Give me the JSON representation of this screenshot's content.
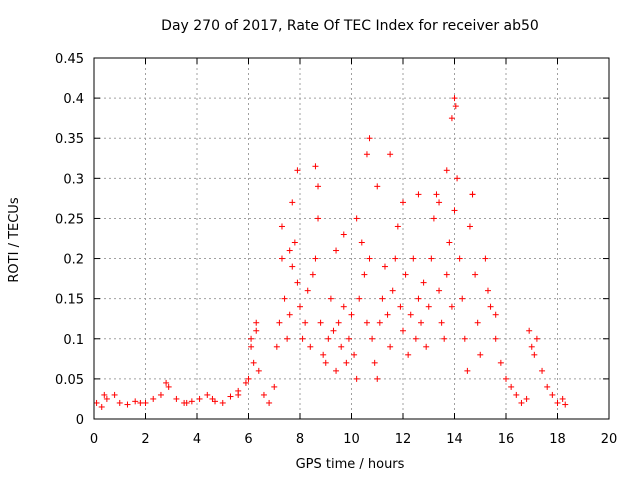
{
  "chart_data": {
    "type": "scatter",
    "title": "Day 270 of 2017, Rate Of TEC Index for receiver ab50",
    "xlabel": "GPS time / hours",
    "ylabel": "ROTI / TECUs",
    "xlim": [
      0,
      20
    ],
    "ylim": [
      0,
      0.45
    ],
    "x_ticks": [
      "0",
      "2",
      "4",
      "6",
      "8",
      "10",
      "12",
      "14",
      "16",
      "18",
      "20"
    ],
    "y_ticks": [
      "0",
      "0.05",
      "0.1",
      "0.15",
      "0.2",
      "0.25",
      "0.3",
      "0.35",
      "0.4",
      "0.45"
    ],
    "grid": true,
    "marker": "+",
    "color": "#ff0000",
    "series": [
      {
        "name": "ROTI",
        "x": [
          0.1,
          0.3,
          0.5,
          0.8,
          1.0,
          1.3,
          1.6,
          2.0,
          2.3,
          2.6,
          2.9,
          3.2,
          3.5,
          3.8,
          4.1,
          4.4,
          4.7,
          5.0,
          5.3,
          5.6,
          5.9,
          6.0,
          6.1,
          6.2,
          6.3,
          6.4,
          6.6,
          6.8,
          7.0,
          7.1,
          7.2,
          7.3,
          7.4,
          7.5,
          7.6,
          7.7,
          7.8,
          7.9,
          8.0,
          8.1,
          8.2,
          8.3,
          8.4,
          8.5,
          8.6,
          8.7,
          8.8,
          8.9,
          9.0,
          9.1,
          9.2,
          9.3,
          9.4,
          9.5,
          9.6,
          9.7,
          9.8,
          9.9,
          10.0,
          10.1,
          10.2,
          10.3,
          10.4,
          10.5,
          10.6,
          10.7,
          10.8,
          10.9,
          11.0,
          11.1,
          11.2,
          11.3,
          11.4,
          11.5,
          11.6,
          11.7,
          11.8,
          11.9,
          12.0,
          12.1,
          12.2,
          12.3,
          12.4,
          12.5,
          12.6,
          12.7,
          12.8,
          12.9,
          13.0,
          13.1,
          13.2,
          13.3,
          13.4,
          13.5,
          13.6,
          13.7,
          13.8,
          13.9,
          14.0,
          14.1,
          14.2,
          14.3,
          14.4,
          14.5,
          14.6,
          14.7,
          14.8,
          14.9,
          15.0,
          15.2,
          15.4,
          15.6,
          15.8,
          16.0,
          16.2,
          16.4,
          16.6,
          16.8,
          17.0,
          17.2,
          17.4,
          17.6,
          17.8,
          18.0,
          18.2,
          18.3,
          8.6,
          7.9,
          10.6,
          10.7,
          11.5,
          13.9,
          14.0,
          14.05,
          13.7,
          12.6,
          10.2,
          9.7,
          8.7,
          7.7,
          13.4,
          14.7,
          12.0,
          11.0,
          9.4,
          15.3,
          15.6,
          6.1,
          6.3,
          7.3,
          7.6,
          16.9,
          17.1,
          0.4,
          1.8,
          2.8,
          3.6,
          4.6,
          5.6
        ],
        "y": [
          0.02,
          0.015,
          0.025,
          0.03,
          0.02,
          0.018,
          0.022,
          0.02,
          0.025,
          0.03,
          0.04,
          0.025,
          0.02,
          0.022,
          0.025,
          0.03,
          0.022,
          0.02,
          0.028,
          0.035,
          0.045,
          0.05,
          0.09,
          0.07,
          0.11,
          0.06,
          0.03,
          0.02,
          0.04,
          0.09,
          0.12,
          0.2,
          0.15,
          0.1,
          0.13,
          0.19,
          0.22,
          0.17,
          0.14,
          0.1,
          0.12,
          0.16,
          0.09,
          0.18,
          0.2,
          0.25,
          0.12,
          0.08,
          0.07,
          0.1,
          0.15,
          0.11,
          0.06,
          0.12,
          0.09,
          0.14,
          0.07,
          0.1,
          0.13,
          0.08,
          0.05,
          0.15,
          0.22,
          0.18,
          0.12,
          0.2,
          0.1,
          0.07,
          0.05,
          0.12,
          0.15,
          0.19,
          0.13,
          0.09,
          0.16,
          0.2,
          0.24,
          0.14,
          0.11,
          0.18,
          0.08,
          0.13,
          0.2,
          0.1,
          0.15,
          0.12,
          0.17,
          0.09,
          0.14,
          0.2,
          0.25,
          0.28,
          0.16,
          0.12,
          0.1,
          0.18,
          0.22,
          0.14,
          0.26,
          0.3,
          0.2,
          0.15,
          0.1,
          0.06,
          0.24,
          0.28,
          0.18,
          0.12,
          0.08,
          0.2,
          0.14,
          0.1,
          0.07,
          0.05,
          0.04,
          0.03,
          0.02,
          0.025,
          0.09,
          0.1,
          0.06,
          0.04,
          0.03,
          0.02,
          0.025,
          0.018,
          0.315,
          0.31,
          0.33,
          0.35,
          0.33,
          0.375,
          0.4,
          0.39,
          0.31,
          0.28,
          0.25,
          0.23,
          0.29,
          0.27,
          0.27,
          0.28,
          0.27,
          0.29,
          0.21,
          0.16,
          0.13,
          0.1,
          0.12,
          0.24,
          0.21,
          0.11,
          0.08,
          0.03,
          0.02,
          0.045,
          0.02,
          0.025,
          0.03
        ]
      }
    ]
  }
}
